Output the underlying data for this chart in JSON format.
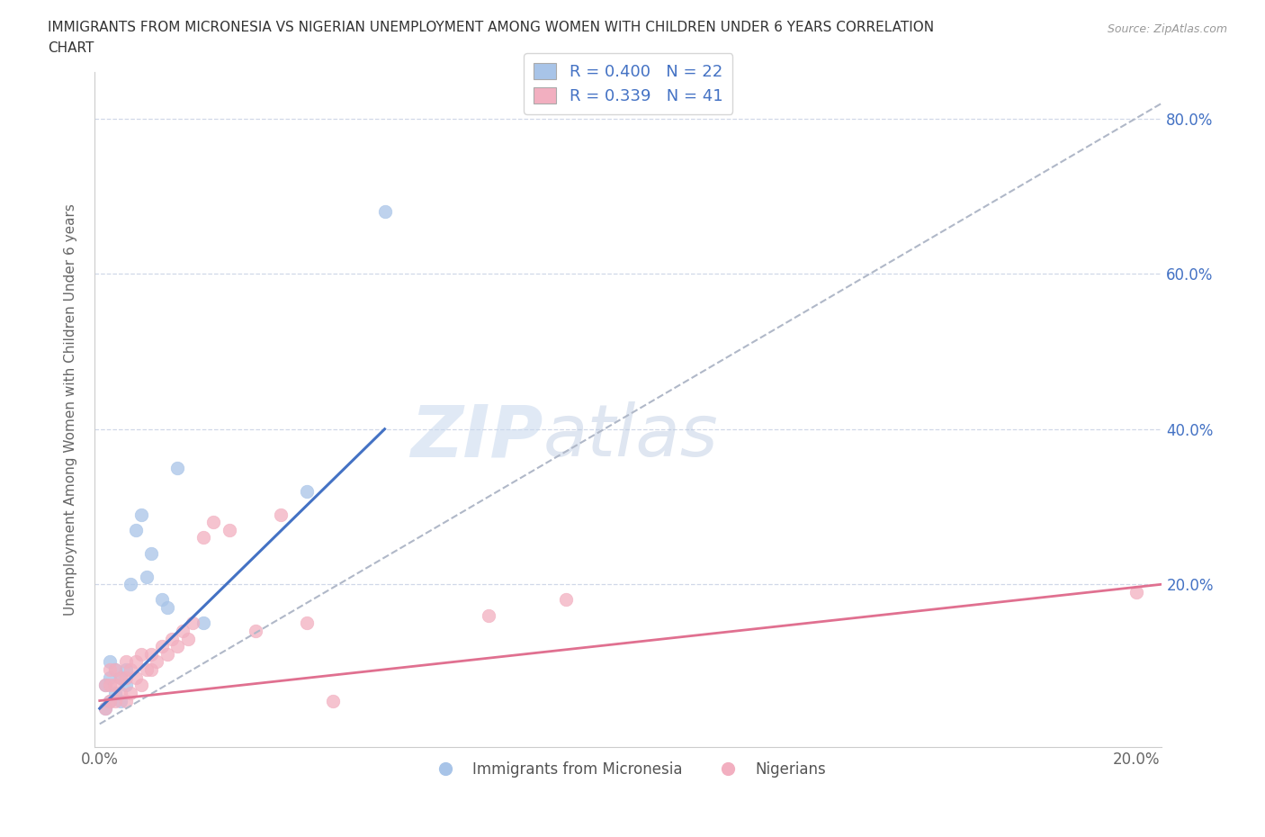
{
  "title_line1": "IMMIGRANTS FROM MICRONESIA VS NIGERIAN UNEMPLOYMENT AMONG WOMEN WITH CHILDREN UNDER 6 YEARS CORRELATION",
  "title_line2": "CHART",
  "source": "Source: ZipAtlas.com",
  "ylabel": "Unemployment Among Women with Children Under 6 years",
  "watermark_zip": "ZIP",
  "watermark_atlas": "atlas",
  "legend_label1": "Immigrants from Micronesia",
  "legend_label2": "Nigerians",
  "blue_color": "#a8c4e8",
  "pink_color": "#f2afc0",
  "blue_line_color": "#4472c4",
  "pink_line_color": "#e07090",
  "gray_line_color": "#b0b8c8",
  "xlim": [
    -0.001,
    0.205
  ],
  "ylim": [
    -0.01,
    0.86
  ],
  "xticks": [
    0.0,
    0.05,
    0.1,
    0.15,
    0.2
  ],
  "xtick_labels": [
    "0.0%",
    "",
    "",
    "",
    "20.0%"
  ],
  "yticks": [
    0.0,
    0.2,
    0.4,
    0.6,
    0.8
  ],
  "ytick_labels_right": [
    "",
    "20.0%",
    "40.0%",
    "60.0%",
    "80.0%"
  ],
  "blue_scatter_x": [
    0.001,
    0.001,
    0.002,
    0.002,
    0.002,
    0.003,
    0.003,
    0.004,
    0.004,
    0.005,
    0.005,
    0.006,
    0.007,
    0.008,
    0.009,
    0.01,
    0.012,
    0.013,
    0.015,
    0.02,
    0.04,
    0.055
  ],
  "blue_scatter_y": [
    0.04,
    0.07,
    0.05,
    0.08,
    0.1,
    0.06,
    0.09,
    0.05,
    0.08,
    0.07,
    0.09,
    0.2,
    0.27,
    0.29,
    0.21,
    0.24,
    0.18,
    0.17,
    0.35,
    0.15,
    0.32,
    0.68
  ],
  "pink_scatter_x": [
    0.001,
    0.001,
    0.002,
    0.002,
    0.002,
    0.003,
    0.003,
    0.003,
    0.004,
    0.004,
    0.005,
    0.005,
    0.005,
    0.006,
    0.006,
    0.007,
    0.007,
    0.008,
    0.008,
    0.009,
    0.01,
    0.01,
    0.011,
    0.012,
    0.013,
    0.014,
    0.015,
    0.016,
    0.017,
    0.018,
    0.02,
    0.022,
    0.025,
    0.03,
    0.035,
    0.04,
    0.045,
    0.075,
    0.09,
    0.2
  ],
  "pink_scatter_y": [
    0.04,
    0.07,
    0.05,
    0.07,
    0.09,
    0.05,
    0.07,
    0.09,
    0.06,
    0.08,
    0.05,
    0.08,
    0.1,
    0.06,
    0.09,
    0.08,
    0.1,
    0.07,
    0.11,
    0.09,
    0.09,
    0.11,
    0.1,
    0.12,
    0.11,
    0.13,
    0.12,
    0.14,
    0.13,
    0.15,
    0.26,
    0.28,
    0.27,
    0.14,
    0.29,
    0.15,
    0.05,
    0.16,
    0.18,
    0.19
  ],
  "blue_line_x": [
    0.0,
    0.055
  ],
  "blue_line_y": [
    0.04,
    0.4
  ],
  "gray_line_x": [
    0.0,
    0.205
  ],
  "gray_line_y": [
    0.02,
    0.82
  ],
  "pink_line_x": [
    0.0,
    0.205
  ],
  "pink_line_y": [
    0.05,
    0.2
  ]
}
